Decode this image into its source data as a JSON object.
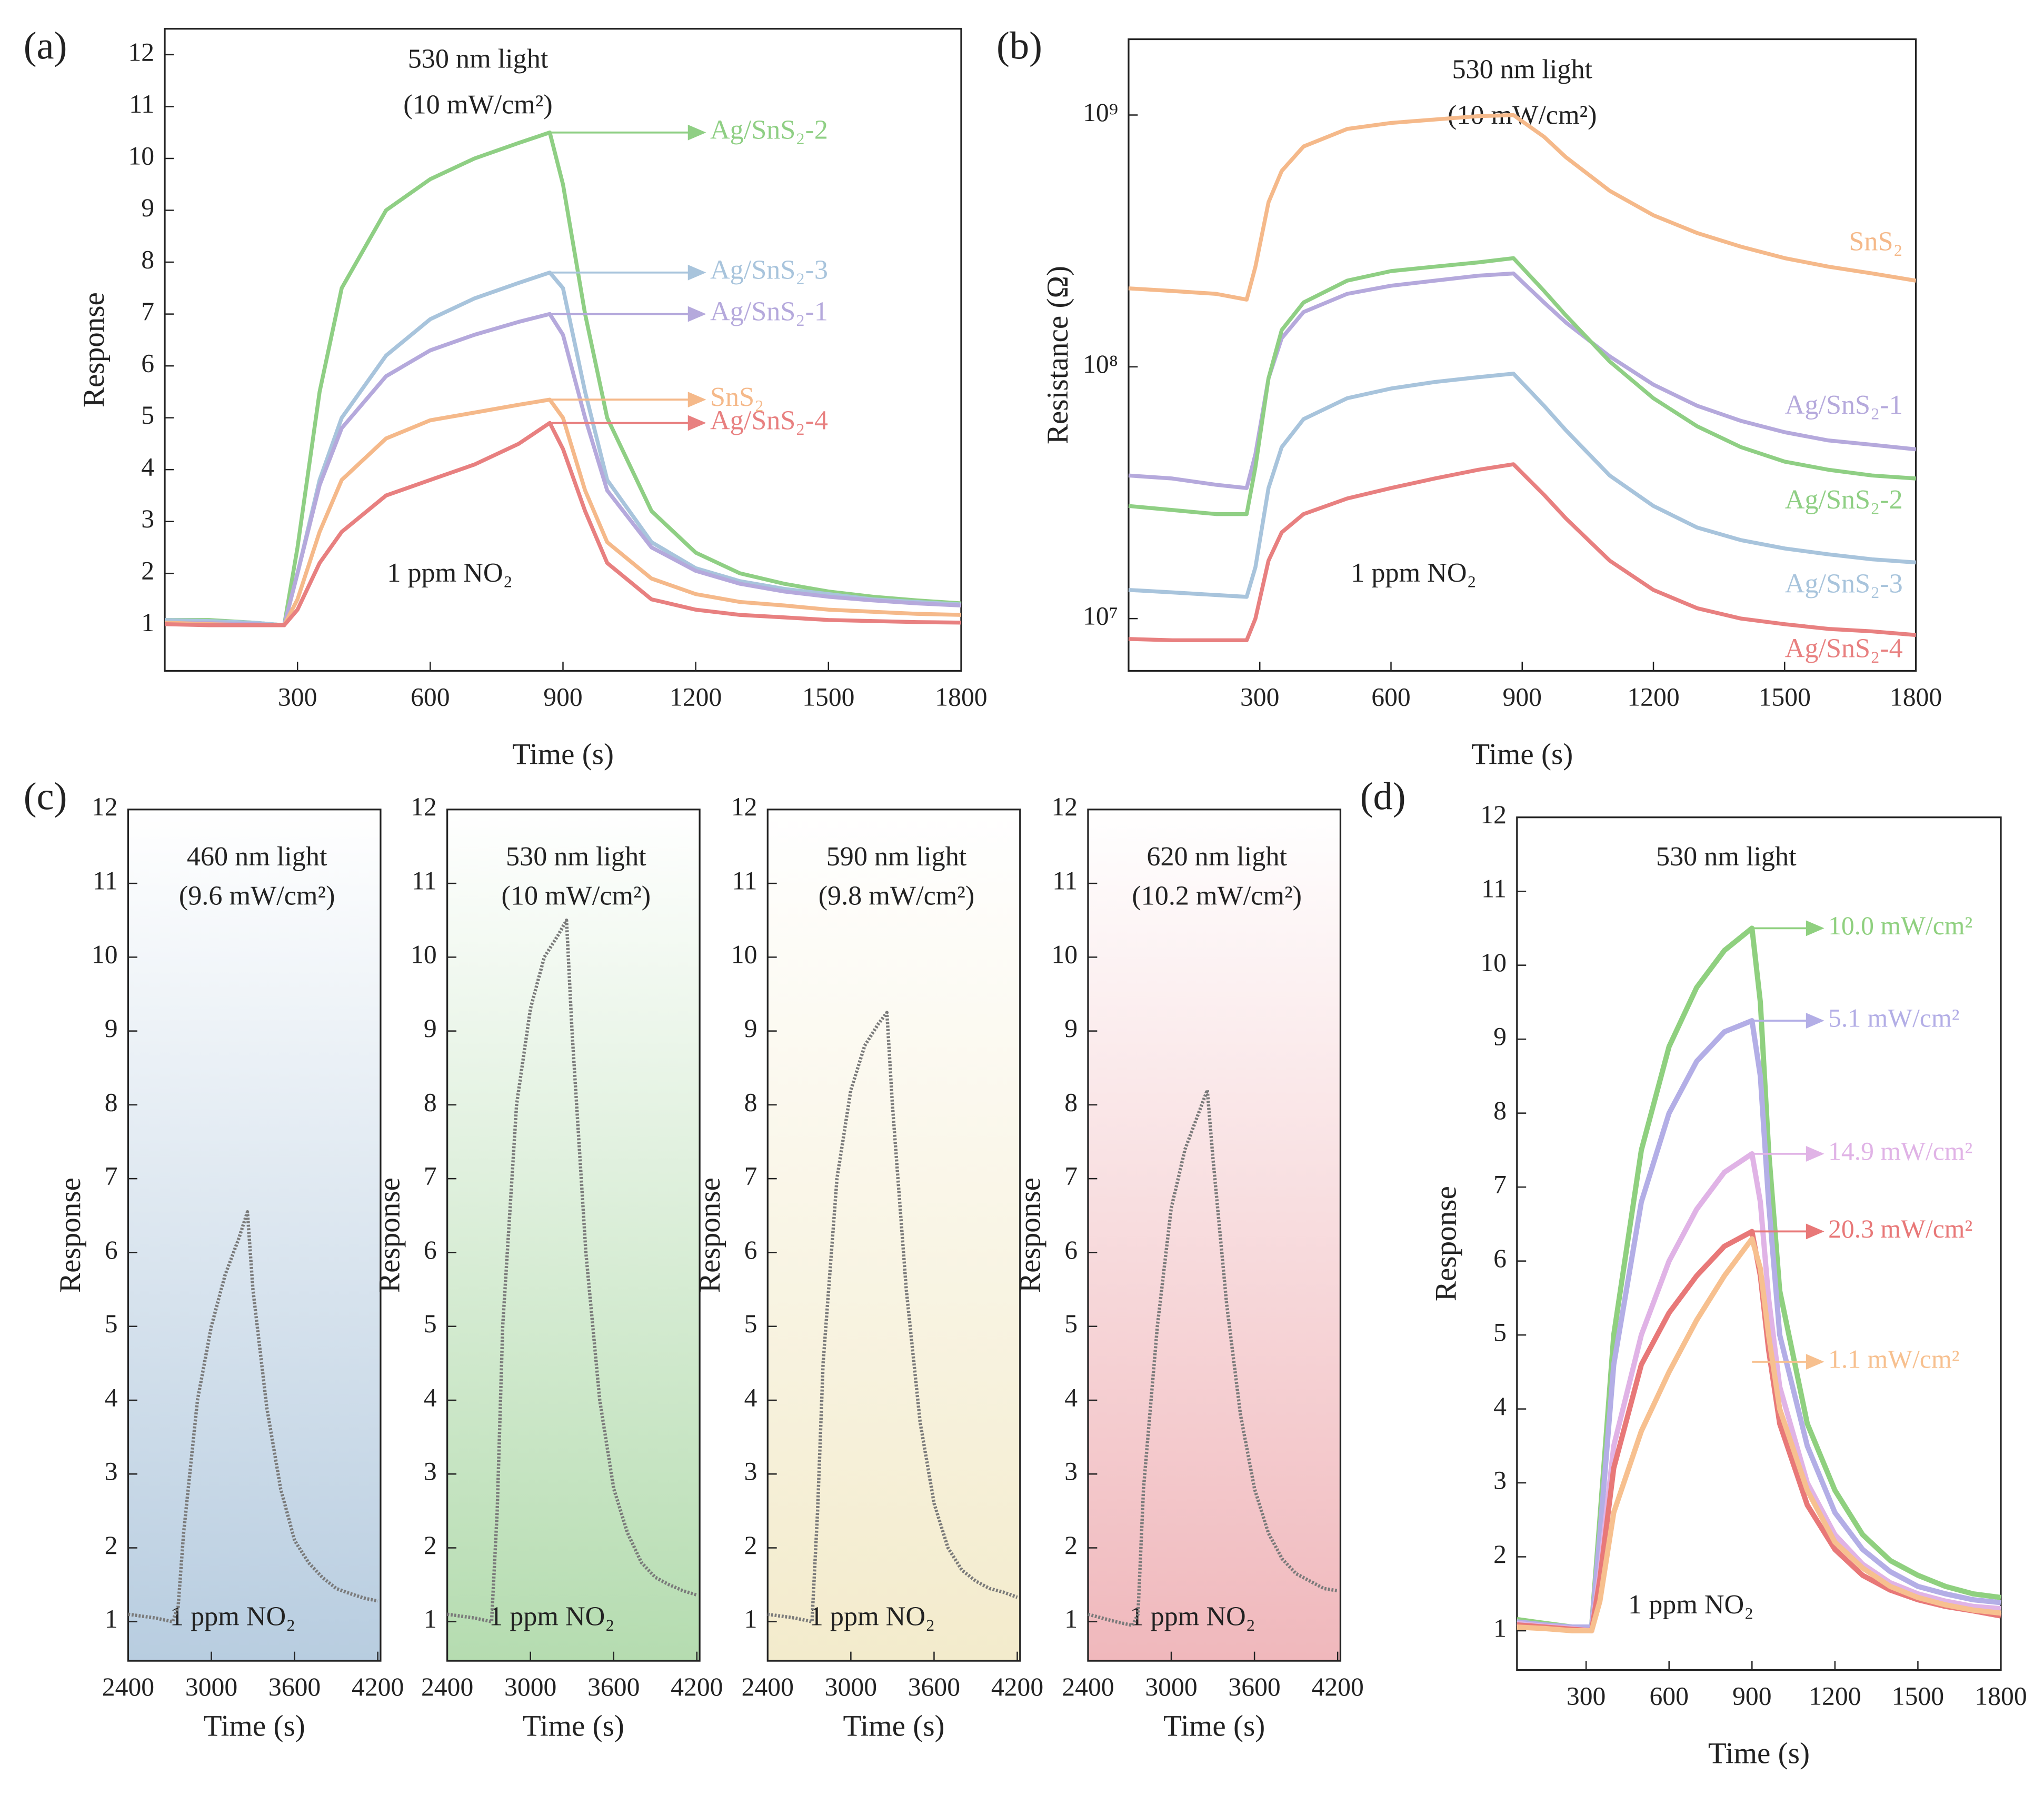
{
  "chart_data": [
    {
      "type": "line",
      "panel_label": "(a)",
      "title": "530 nm light",
      "subtitle": "(10 mW/cm²)",
      "annotation": "1 ppm NO₂",
      "xlabel": "Time (s)",
      "ylabel": "Response",
      "xlim": [
        0,
        1800
      ],
      "xticks": [
        300,
        600,
        900,
        1200,
        1500,
        1800
      ],
      "ylim": [
        0.12,
        12.5
      ],
      "yticks": [
        1,
        2,
        3,
        4,
        5,
        6,
        7,
        8,
        9,
        10,
        11,
        12
      ],
      "x": [
        0,
        100,
        200,
        270,
        300,
        350,
        400,
        500,
        600,
        700,
        800,
        870,
        900,
        950,
        1000,
        1100,
        1200,
        1300,
        1400,
        1500,
        1600,
        1700,
        1800
      ],
      "series": [
        {
          "name": "Ag/SnS₂-2",
          "color": "#8fcf84",
          "values": [
            1.1,
            1.1,
            1.05,
            1.0,
            2.5,
            5.5,
            7.5,
            9.0,
            9.6,
            10.0,
            10.3,
            10.5,
            9.5,
            7,
            5,
            3.2,
            2.4,
            2.0,
            1.8,
            1.65,
            1.55,
            1.48,
            1.42
          ]
        },
        {
          "name": "Ag/SnS₂-3",
          "color": "#a8c4dc",
          "values": [
            1.1,
            1.08,
            1.05,
            1.0,
            2.0,
            3.8,
            5.0,
            6.2,
            6.9,
            7.3,
            7.6,
            7.8,
            7.5,
            5.5,
            3.8,
            2.6,
            2.1,
            1.85,
            1.7,
            1.6,
            1.5,
            1.45,
            1.4
          ]
        },
        {
          "name": "Ag/SnS₂-1",
          "color": "#b5a9dc",
          "values": [
            1.05,
            1.04,
            1.02,
            1.0,
            2.0,
            3.7,
            4.8,
            5.8,
            6.3,
            6.6,
            6.85,
            7.0,
            6.6,
            5.0,
            3.6,
            2.5,
            2.05,
            1.8,
            1.65,
            1.55,
            1.48,
            1.42,
            1.38
          ]
        },
        {
          "name": "SnS₂",
          "color": "#f5b98a",
          "values": [
            1.05,
            1.02,
            1.0,
            1.0,
            1.5,
            2.8,
            3.8,
            4.6,
            4.95,
            5.1,
            5.25,
            5.35,
            5.0,
            3.6,
            2.6,
            1.9,
            1.6,
            1.45,
            1.38,
            1.3,
            1.26,
            1.22,
            1.2
          ]
        },
        {
          "name": "Ag/SnS₂-4",
          "color": "#e88080",
          "values": [
            1.02,
            1.0,
            1.0,
            1.0,
            1.3,
            2.2,
            2.8,
            3.5,
            3.8,
            4.1,
            4.5,
            4.9,
            4.4,
            3.2,
            2.2,
            1.5,
            1.3,
            1.2,
            1.15,
            1.1,
            1.08,
            1.06,
            1.05
          ]
        }
      ]
    },
    {
      "type": "line",
      "panel_label": "(b)",
      "title": "530 nm light",
      "subtitle": "(10 mW/cm²)",
      "annotation": "1 ppm NO₂",
      "xlabel": "Time (s)",
      "ylabel": "Resistance (Ω)",
      "yscale": "log",
      "xlim": [
        0,
        1800
      ],
      "xticks": [
        300,
        600,
        900,
        1200,
        1500,
        1800
      ],
      "ylim": [
        6200000,
        2000000000
      ],
      "yticks": [
        {
          "value": 10000000,
          "label": "10⁷"
        },
        {
          "value": 100000000,
          "label": "10⁸"
        },
        {
          "value": 1000000000,
          "label": "10⁹"
        }
      ],
      "x": [
        0,
        100,
        200,
        270,
        290,
        320,
        350,
        400,
        500,
        600,
        700,
        800,
        880,
        950,
        1000,
        1100,
        1200,
        1300,
        1400,
        1500,
        1600,
        1700,
        1800
      ],
      "series": [
        {
          "name": "SnS₂",
          "color": "#f5b98a",
          "values": [
            205000000,
            200000000,
            195000000,
            185000000,
            250000000,
            450000000,
            600000000,
            750000000,
            880000000,
            930000000,
            960000000,
            990000000,
            1000000000,
            820000000,
            680000000,
            500000000,
            400000000,
            340000000,
            300000000,
            270000000,
            250000000,
            235000000,
            220000000
          ]
        },
        {
          "name": "Ag/SnS₂-1",
          "color": "#b5a9dc",
          "values": [
            37000000,
            36000000,
            34000000,
            33000000,
            45000000,
            90000000,
            130000000,
            165000000,
            195000000,
            210000000,
            220000000,
            230000000,
            235000000,
            180000000,
            150000000,
            110000000,
            85000000,
            70000000,
            61000000,
            55000000,
            51000000,
            49000000,
            47000000
          ]
        },
        {
          "name": "Ag/SnS₂-2",
          "color": "#8fcf84",
          "values": [
            28000000,
            27000000,
            26000000,
            26000000,
            40000000,
            90000000,
            140000000,
            180000000,
            220000000,
            240000000,
            250000000,
            260000000,
            270000000,
            200000000,
            160000000,
            105000000,
            75000000,
            58000000,
            48000000,
            42000000,
            39000000,
            37000000,
            36000000
          ]
        },
        {
          "name": "Ag/SnS₂-3",
          "color": "#a8c4dc",
          "values": [
            13000000,
            12700000,
            12400000,
            12200000,
            16000000,
            33000000,
            48000000,
            62000000,
            75000000,
            82000000,
            87000000,
            91000000,
            94000000,
            70000000,
            56000000,
            37000000,
            28000000,
            23000000,
            20500000,
            19000000,
            18000000,
            17200000,
            16700000
          ]
        },
        {
          "name": "Ag/SnS₂-4",
          "color": "#e88080",
          "values": [
            8300000,
            8200000,
            8200000,
            8200000,
            10000000,
            17000000,
            22000000,
            26000000,
            30000000,
            33000000,
            36000000,
            39000000,
            41000000,
            31000000,
            25000000,
            17000000,
            13000000,
            11000000,
            10000000,
            9500000,
            9100000,
            8900000,
            8600000
          ]
        }
      ]
    },
    {
      "type": "line",
      "panel_label": "(c)",
      "title": "460 nm light",
      "subtitle": "(9.6 mW/cm²)",
      "annotation": "1 ppm NO₂",
      "xlabel": "Time (s)",
      "ylabel": "Response",
      "background_color": "#b8cde0",
      "xlim": [
        2400,
        4220
      ],
      "xticks": [
        2400,
        3000,
        3600,
        4200
      ],
      "ylim": [
        0.47,
        12
      ],
      "yticks": [
        1,
        2,
        3,
        4,
        5,
        6,
        7,
        8,
        9,
        10,
        11,
        12
      ],
      "x": [
        2400,
        2600,
        2720,
        2760,
        2800,
        2900,
        3000,
        3100,
        3200,
        3260,
        3300,
        3400,
        3500,
        3600,
        3700,
        3800,
        3900,
        4000,
        4100,
        4200
      ],
      "series": [
        {
          "color": "#7a7a7a",
          "values": [
            1.1,
            1.05,
            1.0,
            1.2,
            2.2,
            4.0,
            5.0,
            5.7,
            6.2,
            6.55,
            5.5,
            3.9,
            2.8,
            2.1,
            1.8,
            1.6,
            1.45,
            1.38,
            1.32,
            1.28
          ]
        }
      ]
    },
    {
      "type": "line",
      "title": "530 nm light",
      "subtitle": "(10 mW/cm²)",
      "annotation": "1 ppm NO₂",
      "xlabel": "Time (s)",
      "ylabel": "Response",
      "background_color": "#b5dcb0",
      "xlim": [
        2400,
        4220
      ],
      "xticks": [
        2400,
        3000,
        3600,
        4200
      ],
      "ylim": [
        0.47,
        12
      ],
      "yticks": [
        1,
        2,
        3,
        4,
        5,
        6,
        7,
        8,
        9,
        10,
        11,
        12
      ],
      "x": [
        2400,
        2600,
        2720,
        2760,
        2800,
        2900,
        3000,
        3100,
        3200,
        3260,
        3300,
        3400,
        3500,
        3600,
        3700,
        3800,
        3900,
        4000,
        4100,
        4200
      ],
      "series": [
        {
          "color": "#7a7a7a",
          "values": [
            1.1,
            1.05,
            1.0,
            2.5,
            5,
            8,
            9.3,
            10,
            10.3,
            10.5,
            9,
            6,
            4,
            2.8,
            2.2,
            1.8,
            1.6,
            1.5,
            1.42,
            1.36
          ]
        }
      ]
    },
    {
      "type": "line",
      "title": "590 nm light",
      "subtitle": "(9.8 mW/cm²)",
      "annotation": "1 ppm NO₂",
      "xlabel": "Time (s)",
      "ylabel": "Response",
      "background_color": "#f3ebcc",
      "xlim": [
        2400,
        4220
      ],
      "xticks": [
        2400,
        3000,
        3600,
        4200
      ],
      "ylim": [
        0.47,
        12
      ],
      "yticks": [
        1,
        2,
        3,
        4,
        5,
        6,
        7,
        8,
        9,
        10,
        11,
        12
      ],
      "x": [
        2400,
        2600,
        2720,
        2760,
        2800,
        2900,
        3000,
        3100,
        3200,
        3260,
        3300,
        3400,
        3500,
        3600,
        3700,
        3800,
        3900,
        4000,
        4100,
        4200
      ],
      "series": [
        {
          "color": "#7a7a7a",
          "values": [
            1.1,
            1.05,
            1.0,
            2.5,
            4.5,
            7,
            8.2,
            8.8,
            9.1,
            9.25,
            8,
            5.5,
            3.7,
            2.6,
            2.0,
            1.7,
            1.55,
            1.45,
            1.4,
            1.33
          ]
        }
      ]
    },
    {
      "type": "line",
      "title": "620 nm light",
      "subtitle": "(10.2 mW/cm²)",
      "annotation": "1 ppm NO₂",
      "xlabel": "Time (s)",
      "ylabel": "Response",
      "background_color": "#f0b8bc",
      "xlim": [
        2400,
        4220
      ],
      "xticks": [
        2400,
        3000,
        3600,
        4200
      ],
      "ylim": [
        0.47,
        12
      ],
      "yticks": [
        1,
        2,
        3,
        4,
        5,
        6,
        7,
        8,
        9,
        10,
        11,
        12
      ],
      "x": [
        2400,
        2600,
        2720,
        2760,
        2800,
        2900,
        3000,
        3100,
        3200,
        3260,
        3300,
        3400,
        3500,
        3600,
        3700,
        3800,
        3900,
        4000,
        4100,
        4200
      ],
      "series": [
        {
          "color": "#7a7a7a",
          "values": [
            1.1,
            1.0,
            0.95,
            1.1,
            2.8,
            5.0,
            6.6,
            7.4,
            7.9,
            8.2,
            7.3,
            5.3,
            3.8,
            2.8,
            2.2,
            1.85,
            1.65,
            1.55,
            1.45,
            1.42
          ]
        }
      ]
    },
    {
      "type": "line",
      "panel_label": "(d)",
      "title": "530 nm light",
      "annotation": "1 ppm NO₂",
      "xlabel": "Time (s)",
      "ylabel": "Response",
      "xlim": [
        50,
        1800
      ],
      "xticks": [
        300,
        600,
        900,
        1200,
        1500,
        1800
      ],
      "ylim": [
        0.47,
        12
      ],
      "yticks": [
        1,
        2,
        3,
        4,
        5,
        6,
        7,
        8,
        9,
        10,
        11,
        12
      ],
      "x": [
        50,
        150,
        250,
        320,
        350,
        400,
        500,
        600,
        700,
        800,
        900,
        930,
        960,
        1000,
        1100,
        1200,
        1300,
        1400,
        1500,
        1600,
        1700,
        1800
      ],
      "series": [
        {
          "name": "10.0 mW/cm²",
          "color": "#8fd07f",
          "values": [
            1.15,
            1.1,
            1.05,
            1.05,
            2.5,
            5,
            7.5,
            8.9,
            9.7,
            10.2,
            10.5,
            9.5,
            7.5,
            5.6,
            3.8,
            2.9,
            2.3,
            1.95,
            1.75,
            1.6,
            1.5,
            1.45
          ]
        },
        {
          "name": "5.1 mW/cm²",
          "color": "#b3aee6",
          "values": [
            1.12,
            1.08,
            1.05,
            1.05,
            2.3,
            4.6,
            6.8,
            8.0,
            8.7,
            9.1,
            9.25,
            8.5,
            6.8,
            5.0,
            3.5,
            2.6,
            2.1,
            1.8,
            1.6,
            1.5,
            1.42,
            1.38
          ]
        },
        {
          "name": "14.9 mW/cm²",
          "color": "#e0b3e6",
          "values": [
            1.1,
            1.06,
            1.03,
            1.0,
            1.8,
            3.5,
            5.0,
            6.0,
            6.7,
            7.2,
            7.45,
            6.8,
            5.5,
            4.3,
            3.0,
            2.3,
            1.9,
            1.65,
            1.5,
            1.4,
            1.33,
            1.3
          ]
        },
        {
          "name": "20.3 mW/cm²",
          "color": "#e87878",
          "values": [
            1.08,
            1.05,
            1.02,
            1.0,
            1.7,
            3.2,
            4.6,
            5.3,
            5.8,
            6.2,
            6.4,
            5.8,
            4.8,
            3.8,
            2.7,
            2.1,
            1.75,
            1.55,
            1.42,
            1.33,
            1.27,
            1.2
          ]
        },
        {
          "name": "1.1 mW/cm²",
          "color": "#f7c08f",
          "values": [
            1.05,
            1.03,
            1.0,
            1.0,
            1.4,
            2.6,
            3.7,
            4.5,
            5.2,
            5.8,
            6.3,
            5.9,
            5.0,
            4.0,
            2.9,
            2.2,
            1.85,
            1.6,
            1.45,
            1.35,
            1.28,
            1.24
          ]
        }
      ]
    }
  ]
}
